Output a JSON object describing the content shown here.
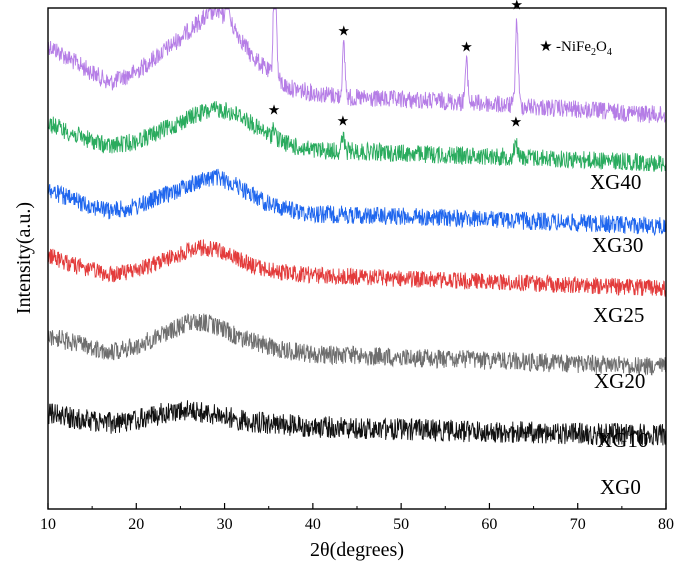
{
  "chart_data": {
    "type": "line",
    "xlabel": "2θ(degrees)",
    "ylabel": "Intensity(a.u.)",
    "xlim": [
      10,
      80
    ],
    "x_ticks": [
      "10",
      "20",
      "30",
      "40",
      "50",
      "60",
      "70",
      "80"
    ],
    "y_ticks_shown": false,
    "grid": false,
    "legend": {
      "marker": "★",
      "label": "-NiFe2O4",
      "label_main": "-NiFe",
      "sub1": "2",
      "mid": "O",
      "sub2": "4",
      "placement": "top-right"
    },
    "series": [
      {
        "name": "XG40",
        "color": "#b57de6",
        "profile": [
          [
            10,
            0.52
          ],
          [
            13,
            0.4
          ],
          [
            17,
            0.25
          ],
          [
            20,
            0.33
          ],
          [
            24,
            0.52
          ],
          [
            27,
            0.68
          ],
          [
            29,
            0.77
          ],
          [
            31,
            0.65
          ],
          [
            33,
            0.45
          ],
          [
            35,
            0.33
          ],
          [
            37,
            0.22
          ],
          [
            40,
            0.18
          ],
          [
            45,
            0.14
          ],
          [
            50,
            0.13
          ],
          [
            55,
            0.12
          ],
          [
            60,
            0.1
          ],
          [
            65,
            0.08
          ],
          [
            70,
            0.06
          ],
          [
            75,
            0.04
          ],
          [
            80,
            0.02
          ]
        ],
        "peaks": [
          [
            30.3,
            0.4
          ],
          [
            35.7,
            1.0
          ],
          [
            43.5,
            0.35
          ],
          [
            57.4,
            0.28
          ],
          [
            63.1,
            0.6
          ]
        ],
        "stars": [
          30.3,
          35.7,
          43.5,
          57.4,
          63.1
        ]
      },
      {
        "name": "XG30",
        "color": "#2aab5e",
        "profile": [
          [
            10,
            0.48
          ],
          [
            13,
            0.35
          ],
          [
            17,
            0.22
          ],
          [
            20,
            0.28
          ],
          [
            24,
            0.44
          ],
          [
            27,
            0.58
          ],
          [
            29.5,
            0.63
          ],
          [
            32,
            0.55
          ],
          [
            34,
            0.4
          ],
          [
            36,
            0.3
          ],
          [
            38,
            0.22
          ],
          [
            40,
            0.18
          ],
          [
            45,
            0.17
          ],
          [
            50,
            0.15
          ],
          [
            55,
            0.13
          ],
          [
            60,
            0.12
          ],
          [
            65,
            0.1
          ],
          [
            70,
            0.08
          ],
          [
            75,
            0.06
          ],
          [
            80,
            0.04
          ]
        ],
        "peaks": [
          [
            35.6,
            0.12
          ],
          [
            43.4,
            0.15
          ],
          [
            63.0,
            0.2
          ]
        ],
        "stars": [
          35.6,
          43.4,
          63.0
        ]
      },
      {
        "name": "XG25",
        "color": "#1f66ee",
        "profile": [
          [
            10,
            0.45
          ],
          [
            13,
            0.32
          ],
          [
            17,
            0.2
          ],
          [
            20,
            0.25
          ],
          [
            24,
            0.42
          ],
          [
            27,
            0.55
          ],
          [
            29,
            0.6
          ],
          [
            31,
            0.52
          ],
          [
            33,
            0.4
          ],
          [
            35,
            0.28
          ],
          [
            38,
            0.2
          ],
          [
            40,
            0.17
          ],
          [
            45,
            0.15
          ],
          [
            50,
            0.14
          ],
          [
            55,
            0.12
          ],
          [
            60,
            0.1
          ],
          [
            65,
            0.08
          ],
          [
            70,
            0.06
          ],
          [
            75,
            0.04
          ],
          [
            80,
            0.02
          ]
        ],
        "peaks": [],
        "stars": []
      },
      {
        "name": "XG20",
        "color": "#e33b3b",
        "profile": [
          [
            10,
            0.42
          ],
          [
            13,
            0.3
          ],
          [
            17,
            0.18
          ],
          [
            20,
            0.24
          ],
          [
            24,
            0.4
          ],
          [
            27,
            0.52
          ],
          [
            29,
            0.5
          ],
          [
            31,
            0.4
          ],
          [
            33,
            0.3
          ],
          [
            35,
            0.24
          ],
          [
            38,
            0.2
          ],
          [
            40,
            0.18
          ],
          [
            45,
            0.16
          ],
          [
            50,
            0.14
          ],
          [
            55,
            0.12
          ],
          [
            60,
            0.1
          ],
          [
            65,
            0.08
          ],
          [
            70,
            0.06
          ],
          [
            75,
            0.04
          ],
          [
            80,
            0.02
          ]
        ],
        "peaks": [],
        "stars": []
      },
      {
        "name": "XG10",
        "color": "#6e6e6e",
        "profile": [
          [
            10,
            0.4
          ],
          [
            13,
            0.3
          ],
          [
            17,
            0.2
          ],
          [
            20,
            0.26
          ],
          [
            23,
            0.42
          ],
          [
            26,
            0.55
          ],
          [
            28,
            0.55
          ],
          [
            30,
            0.46
          ],
          [
            32,
            0.36
          ],
          [
            35,
            0.26
          ],
          [
            38,
            0.2
          ],
          [
            40,
            0.17
          ],
          [
            45,
            0.15
          ],
          [
            50,
            0.13
          ],
          [
            55,
            0.11
          ],
          [
            60,
            0.09
          ],
          [
            65,
            0.07
          ],
          [
            70,
            0.05
          ],
          [
            75,
            0.03
          ],
          [
            80,
            0.02
          ]
        ],
        "peaks": [],
        "stars": []
      },
      {
        "name": "XG0",
        "color": "#111111",
        "profile": [
          [
            10,
            0.4
          ],
          [
            13,
            0.32
          ],
          [
            17,
            0.24
          ],
          [
            20,
            0.28
          ],
          [
            23,
            0.4
          ],
          [
            25,
            0.45
          ],
          [
            27,
            0.42
          ],
          [
            30,
            0.34
          ],
          [
            33,
            0.27
          ],
          [
            36,
            0.22
          ],
          [
            40,
            0.18
          ],
          [
            45,
            0.16
          ],
          [
            50,
            0.14
          ],
          [
            55,
            0.12
          ],
          [
            60,
            0.1
          ],
          [
            65,
            0.09
          ],
          [
            70,
            0.07
          ],
          [
            75,
            0.06
          ],
          [
            80,
            0.05
          ]
        ],
        "peaks": [],
        "stars": []
      }
    ]
  }
}
